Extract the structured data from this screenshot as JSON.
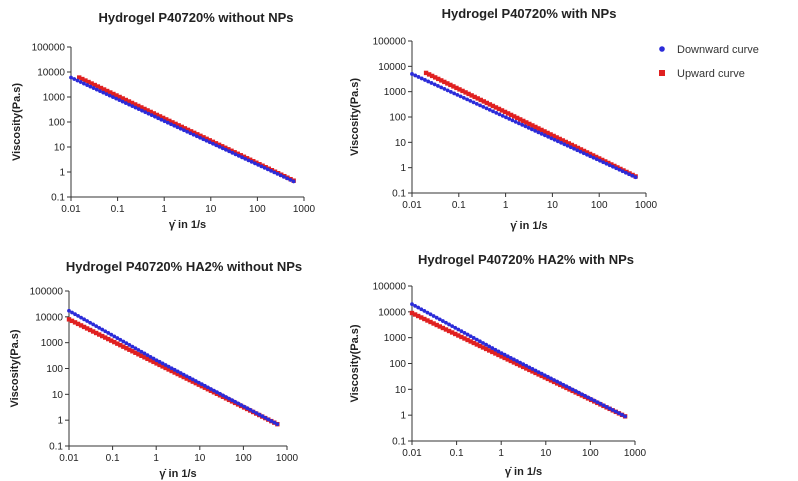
{
  "chart_data": [
    {
      "type": "scatter",
      "title": "Hydrogel P40720% without NPs",
      "xlabel": "γ̇ in 1/s",
      "ylabel": "Viscosity(Pa.s)",
      "xscale": "log",
      "yscale": "log",
      "xlim": [
        0.01,
        1000
      ],
      "ylim": [
        0.1,
        100000
      ],
      "xticks": [
        "0.01",
        "0.1",
        "1",
        "10",
        "100",
        "1000"
      ],
      "yticks": [
        "0.1",
        "1",
        "10",
        "100",
        "1000",
        "10000",
        "100000"
      ],
      "grid": false,
      "series": [
        {
          "name": "Downward curve",
          "color": "#2b2bd9",
          "x_range": [
            0.01,
            600
          ],
          "y_range": [
            6000,
            0.42
          ]
        },
        {
          "name": "Upward curve",
          "color": "#e02020",
          "x_range": [
            0.015,
            600
          ],
          "y_range": [
            6000,
            0.45
          ]
        }
      ]
    },
    {
      "type": "scatter",
      "title": "Hydrogel P40720% with NPs",
      "xlabel": "γ̇ in 1/s",
      "ylabel": "Viscosity(Pa.s)",
      "xscale": "log",
      "yscale": "log",
      "xlim": [
        0.01,
        1000
      ],
      "ylim": [
        0.1,
        100000
      ],
      "xticks": [
        "0.01",
        "0.1",
        "1",
        "10",
        "100",
        "1000"
      ],
      "yticks": [
        "0.1",
        "1",
        "10",
        "100",
        "1000",
        "10000",
        "100000"
      ],
      "grid": false,
      "series": [
        {
          "name": "Downward curve",
          "color": "#2b2bd9",
          "x_range": [
            0.01,
            600
          ],
          "y_range": [
            5000,
            0.42
          ]
        },
        {
          "name": "Upward curve",
          "color": "#e02020",
          "x_range": [
            0.02,
            600
          ],
          "y_range": [
            5500,
            0.45
          ]
        }
      ]
    },
    {
      "type": "scatter",
      "title": "Hydrogel P40720% HA2% without NPs",
      "xlabel": "γ̇ in 1/s",
      "ylabel": "Viscosity(Pa.s)",
      "xscale": "log",
      "yscale": "log",
      "xlim": [
        0.01,
        1000
      ],
      "ylim": [
        0.1,
        100000
      ],
      "xticks": [
        "0.01",
        "0.1",
        "1",
        "10",
        "100",
        "1000"
      ],
      "yticks": [
        "0.1",
        "1",
        "10",
        "100",
        "1000",
        "10000",
        "100000"
      ],
      "grid": false,
      "series": [
        {
          "name": "Downward curve",
          "color": "#2b2bd9",
          "x_range": [
            0.01,
            600
          ],
          "y_range": [
            13000,
            0.7
          ]
        },
        {
          "name": "Upward curve",
          "color": "#e02020",
          "x_range": [
            0.01,
            600
          ],
          "y_range": [
            8000,
            0.7
          ]
        }
      ]
    },
    {
      "type": "scatter",
      "title": "Hydrogel P40720% HA2% with NPs",
      "xlabel": "γ̇ in 1/s",
      "ylabel": "Viscosity(Pa.s)",
      "xscale": "log",
      "yscale": "log",
      "xlim": [
        0.01,
        1000
      ],
      "ylim": [
        0.1,
        100000
      ],
      "xticks": [
        "0.01",
        "0.1",
        "1",
        "10",
        "100",
        "1000"
      ],
      "yticks": [
        "0.1",
        "1",
        "10",
        "100",
        "1000",
        "10000",
        "100000"
      ],
      "grid": false,
      "series": [
        {
          "name": "Downward curve",
          "color": "#2b2bd9",
          "x_range": [
            0.01,
            600
          ],
          "y_range": [
            15000,
            0.9
          ]
        },
        {
          "name": "Upward curve",
          "color": "#e02020",
          "x_range": [
            0.01,
            600
          ],
          "y_range": [
            9000,
            0.9
          ]
        }
      ]
    }
  ],
  "legend": {
    "placement": "top-right",
    "entries": [
      {
        "label": "Downward curve",
        "color": "#2b2bd9"
      },
      {
        "label": "Upward curve",
        "color": "#e02020"
      }
    ]
  }
}
